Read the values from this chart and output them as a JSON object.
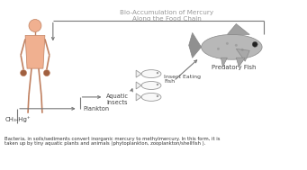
{
  "title": "Bio-Accumulation of Mercury\nAlong the Food Chain",
  "title_color": "#999999",
  "bg_color": "#ffffff",
  "bottom_text": "Bacteria, in soils/sediments convert inorganic mercury to methylmercury. In this form, it is\ntaken up by tiny aquatic plants and animals (phytoplankton, zooplankton/shellfish ).",
  "labels": {
    "ch3hg": "CH₃-Hg⁺",
    "plankton": "Plankton",
    "aquatic_insects": "Aquatic\nInsects",
    "insect_eating_fish": "Insect Eating\nFish",
    "predatory_fish": "Predatory Fish"
  },
  "human_color": "#f0b090",
  "human_outline": "#c08060",
  "arrow_color": "#777777",
  "label_color": "#444444",
  "figsize": [
    3.41,
    1.89
  ],
  "dpi": 100
}
